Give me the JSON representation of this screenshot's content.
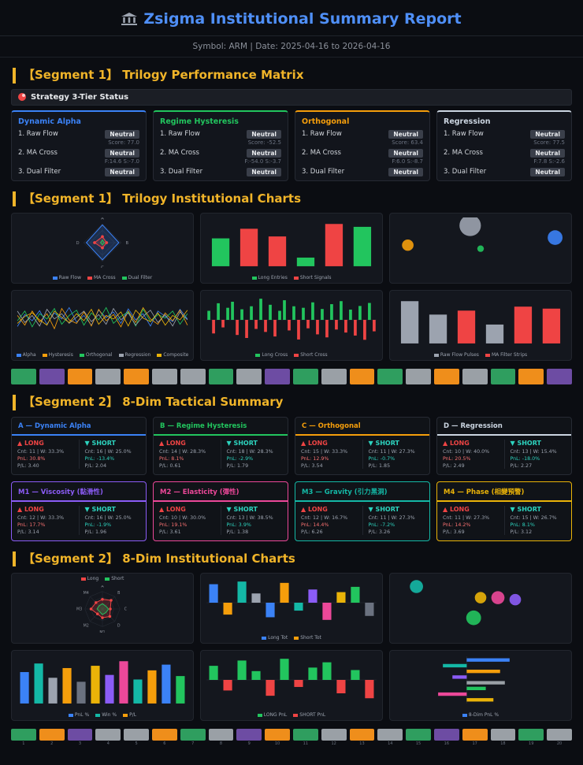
{
  "header": {
    "icon": "bank-icon",
    "title": "Zsigma Institutional Summary Report",
    "subtitle": "Symbol: ARM | Date: 2025-04-16 to 2026-04-16"
  },
  "segment1": {
    "heading_matrix": "【Segment 1】 Trilogy Performance Matrix",
    "status_label": "Strategy 3-Tier Status",
    "heading_charts": "【Segment 1】 Trilogy Institutional Charts",
    "strategies": [
      {
        "name": "Dynamic Alpha",
        "color": "#3b82f6",
        "tiers": [
          {
            "label": "1. Raw Flow",
            "badge": "Neutral",
            "detail": "Score: 77.0"
          },
          {
            "label": "2. MA Cross",
            "badge": "Neutral",
            "detail": "F:14.6 S:-7.0"
          },
          {
            "label": "3. Dual Filter",
            "badge": "Neutral",
            "detail": ""
          }
        ]
      },
      {
        "name": "Regime Hysteresis",
        "color": "#22c55e",
        "tiers": [
          {
            "label": "1. Raw Flow",
            "badge": "Neutral",
            "detail": "Score: -52.5"
          },
          {
            "label": "2. MA Cross",
            "badge": "Neutral",
            "detail": "F:-54.0 S:-3.7"
          },
          {
            "label": "3. Dual Filter",
            "badge": "Neutral",
            "detail": ""
          }
        ]
      },
      {
        "name": "Orthogonal",
        "color": "#f59e0b",
        "tiers": [
          {
            "label": "1. Raw Flow",
            "badge": "Neutral",
            "detail": "Score: 63.4"
          },
          {
            "label": "2. MA Cross",
            "badge": "Neutral",
            "detail": "F:6.0 S:-8.7"
          },
          {
            "label": "3. Dual Filter",
            "badge": "Neutral",
            "detail": ""
          }
        ]
      },
      {
        "name": "Regression",
        "color": "#cbd5e1",
        "tiers": [
          {
            "label": "1. Raw Flow",
            "badge": "Neutral",
            "detail": "Score: 77.5"
          },
          {
            "label": "2. MA Cross",
            "badge": "Neutral",
            "detail": "F:7.8 S:-2.6"
          },
          {
            "label": "3. Dual Filter",
            "badge": "Neutral",
            "detail": ""
          }
        ]
      }
    ]
  },
  "segment2": {
    "heading_summary": "【Segment 2】 8-Dim Tactical Summary",
    "heading_charts": "【Segment 2】 8-Dim Institutional Charts",
    "cards": [
      {
        "title": "A — Dynamic Alpha",
        "color": "#3b82f6",
        "long": {
          "dir": "▲ LONG",
          "cnt": "Cnt: 11 | W: 33.3%",
          "pnl": "PnL: 30.8%",
          "pl": "P/L: 3.40"
        },
        "short": {
          "dir": "▼ SHORT",
          "cnt": "Cnt: 16 | W: 25.0%",
          "pnl": "PnL: -13.4%",
          "pl": "P/L: 2.04"
        }
      },
      {
        "title": "B — Regime Hysteresis",
        "color": "#22c55e",
        "long": {
          "dir": "▲ LONG",
          "cnt": "Cnt: 14 | W: 28.3%",
          "pnl": "PnL: 8.1%",
          "pl": "P/L: 0.61"
        },
        "short": {
          "dir": "▼ SHORT",
          "cnt": "Cnt: 18 | W: 28.3%",
          "pnl": "PnL: -2.9%",
          "pl": "P/L: 1.79"
        }
      },
      {
        "title": "C — Orthogonal",
        "color": "#f59e0b",
        "long": {
          "dir": "▲ LONG",
          "cnt": "Cnt: 15 | W: 33.3%",
          "pnl": "PnL: 12.9%",
          "pl": "P/L: 3.54"
        },
        "short": {
          "dir": "▼ SHORT",
          "cnt": "Cnt: 11 | W: 27.3%",
          "pnl": "PnL: -0.7%",
          "pl": "P/L: 1.85"
        }
      },
      {
        "title": "D — Regression",
        "color": "#cbd5e1",
        "long": {
          "dir": "▲ LONG",
          "cnt": "Cnt: 10 | W: 40.0%",
          "pnl": "PnL: 20.5%",
          "pl": "P/L: 2.49"
        },
        "short": {
          "dir": "▼ SHORT",
          "cnt": "Cnt: 13 | W: 15.4%",
          "pnl": "PnL: -18.0%",
          "pl": "P/L: 2.27"
        }
      },
      {
        "title": "M1 — Viscosity (黏滑性)",
        "color": "#8b5cf6",
        "long": {
          "dir": "▲ LONG",
          "cnt": "Cnt: 12 | W: 33.3%",
          "pnl": "PnL: 17.7%",
          "pl": "P/L: 3.14"
        },
        "short": {
          "dir": "▼ SHORT",
          "cnt": "Cnt: 16 | W: 25.0%",
          "pnl": "PnL: -1.9%",
          "pl": "P/L: 1.96"
        }
      },
      {
        "title": "M2 — Elasticity (彈性)",
        "color": "#ec4899",
        "long": {
          "dir": "▲ LONG",
          "cnt": "Cnt: 10 | W: 30.0%",
          "pnl": "PnL: 19.1%",
          "pl": "P/L: 3.61"
        },
        "short": {
          "dir": "▼ SHORT",
          "cnt": "Cnt: 13 | W: 38.5%",
          "pnl": "PnL: 3.9%",
          "pl": "P/L: 1.38"
        }
      },
      {
        "title": "M3 — Gravity (引力黑洞)",
        "color": "#14b8a6",
        "long": {
          "dir": "▲ LONG",
          "cnt": "Cnt: 12 | W: 16.7%",
          "pnl": "PnL: 14.4%",
          "pl": "P/L: 6.26"
        },
        "short": {
          "dir": "▼ SHORT",
          "cnt": "Cnt: 11 | W: 27.3%",
          "pnl": "PnL: -7.2%",
          "pl": "P/L: 3.26"
        }
      },
      {
        "title": "M4 — Phase (相變預警)",
        "color": "#eab308",
        "long": {
          "dir": "▲ LONG",
          "cnt": "Cnt: 11 | W: 27.3%",
          "pnl": "PnL: 14.2%",
          "pl": "P/L: 3.69"
        },
        "short": {
          "dir": "▼ SHORT",
          "cnt": "Cnt: 15 | W: 26.7%",
          "pnl": "PnL: 8.1%",
          "pl": "P/L: 3.12"
        }
      }
    ]
  },
  "chart_data": [
    {
      "type": "radar",
      "axes": [
        "A",
        "B",
        "C",
        "D"
      ],
      "series": [
        {
          "name": "Raw Flow",
          "color": "#3b82f6",
          "values": [
            0.95,
            0.88,
            0.92,
            0.86
          ]
        },
        {
          "name": "MA Cross",
          "color": "#ef4444",
          "dots": true,
          "values": [
            0.32,
            0.22,
            0.28,
            0.42
          ]
        },
        {
          "name": "Dual Filter",
          "color": "#22c55e",
          "values": [
            0.14,
            0.1,
            0.12,
            0.1
          ]
        }
      ],
      "legend": [
        {
          "label": "Raw Flow",
          "color": "#3b82f6"
        },
        {
          "label": "MA Cross",
          "color": "#ef4444"
        },
        {
          "label": "Dual Filter",
          "color": "#22c55e"
        }
      ],
      "legend_pos": "bottom"
    },
    {
      "type": "bar",
      "values": [
        58,
        78,
        62,
        18,
        88,
        82
      ],
      "colors": [
        "#22c55e",
        "#ef4444",
        "#ef4444",
        "#22c55e",
        "#ef4444",
        "#22c55e"
      ],
      "legend": [
        {
          "label": "Long Entries",
          "color": "#22c55e"
        },
        {
          "label": "Short Signals",
          "color": "#ef4444"
        }
      ]
    },
    {
      "type": "scatter",
      "points": [
        {
          "x": 0.08,
          "y": 0.55,
          "r": 7,
          "color": "#f59e0b"
        },
        {
          "x": 0.44,
          "y": 0.16,
          "r": 13,
          "color": "#9ca3af"
        },
        {
          "x": 0.5,
          "y": 0.62,
          "r": 4,
          "color": "#22c55e"
        },
        {
          "x": 0.93,
          "y": 0.4,
          "r": 9,
          "color": "#3b82f6"
        }
      ]
    },
    {
      "type": "line",
      "series": [
        {
          "name": "Alpha",
          "color": "#3b82f6",
          "values": [
            35,
            62,
            48,
            71,
            40,
            66,
            52,
            78,
            45,
            60,
            38,
            72,
            55,
            68,
            42,
            75,
            50,
            64,
            36,
            70,
            58,
            46,
            74,
            52
          ]
        },
        {
          "name": "Hysteresis",
          "color": "#f59e0b",
          "values": [
            60,
            38,
            70,
            45,
            64,
            30,
            76,
            50,
            42,
            68,
            36,
            74,
            48,
            62,
            34,
            70,
            44,
            78,
            52,
            40,
            66,
            48,
            72,
            38
          ]
        },
        {
          "name": "Orthogonal",
          "color": "#22c55e",
          "values": [
            48,
            70,
            34,
            64,
            52,
            76,
            40,
            60,
            72,
            38,
            66,
            50,
            78,
            42,
            58,
            68,
            36,
            74,
            46,
            62,
            54,
            70,
            40,
            64
          ]
        },
        {
          "name": "Regression",
          "color": "#9ca3af",
          "values": [
            70,
            44,
            60,
            36,
            74,
            52,
            64,
            42,
            56,
            70,
            46,
            62,
            40,
            76,
            50,
            66,
            38,
            58,
            72,
            44,
            62,
            36,
            68,
            50
          ]
        },
        {
          "name": "Composite",
          "color": "#eab308",
          "values": [
            42,
            58,
            66,
            50,
            38,
            70,
            56,
            44,
            64,
            48,
            74,
            40,
            60,
            52,
            68,
            36,
            72,
            54,
            46,
            66,
            38,
            60,
            50,
            72
          ]
        }
      ],
      "legend": [
        {
          "label": "Alpha",
          "color": "#3b82f6"
        },
        {
          "label": "Hysteresis",
          "color": "#f59e0b"
        },
        {
          "label": "Orthogonal",
          "color": "#22c55e"
        },
        {
          "label": "Regression",
          "color": "#9ca3af"
        },
        {
          "label": "Composite",
          "color": "#eab308"
        }
      ]
    },
    {
      "type": "bar",
      "values": [
        30,
        -45,
        55,
        -25,
        40,
        60,
        -50,
        35,
        -60,
        45,
        -30,
        70,
        -40,
        50,
        -55,
        30,
        65,
        -35,
        45,
        -65,
        40,
        -28,
        58,
        -48,
        36,
        -58,
        52,
        -32,
        62,
        -42,
        34,
        -52,
        46,
        -66,
        56,
        -38
      ],
      "pos_color": "#22c55e",
      "neg_color": "#ef4444",
      "legend": [
        {
          "label": "Long Cross",
          "color": "#22c55e"
        },
        {
          "label": "Short Cross",
          "color": "#ef4444"
        }
      ]
    },
    {
      "type": "bar",
      "values": [
        85,
        58,
        66,
        38,
        74,
        70
      ],
      "colors": [
        "#9ca3af",
        "#9ca3af",
        "#ef4444",
        "#9ca3af",
        "#ef4444",
        "#ef4444"
      ],
      "legend": [
        {
          "label": "Raw Flow Pulses",
          "color": "#9ca3af"
        },
        {
          "label": "MA Filter Strips",
          "color": "#ef4444"
        }
      ]
    },
    {
      "type": "heatmap",
      "colors": [
        "#2f9e5f",
        "#6d4ca3",
        "#ef8e1b",
        "#9aa0a6",
        "#ef8e1b",
        "#9aa0a6",
        "#9aa0a6",
        "#2f9e5f",
        "#9aa0a6",
        "#6d4ca3",
        "#2f9e5f",
        "#9aa0a6",
        "#ef8e1b",
        "#2f9e5f",
        "#9aa0a6",
        "#ef8e1b",
        "#9aa0a6",
        "#2f9e5f",
        "#ef8e1b",
        "#6d4ca3"
      ]
    },
    {
      "type": "radar",
      "axes": [
        "A",
        "B",
        "C",
        "D",
        "M1",
        "M2",
        "M3",
        "M4"
      ],
      "series": [
        {
          "name": "Long",
          "color": "#ef4444",
          "dots": true,
          "values": [
            0.55,
            0.7,
            0.45,
            0.6,
            0.5,
            0.4,
            0.65,
            0.52
          ]
        },
        {
          "name": "Short",
          "color": "#22c55e",
          "values": [
            0.3,
            0.25,
            0.35,
            0.28,
            0.32,
            0.22,
            0.3,
            0.26
          ]
        }
      ],
      "legend": [
        {
          "label": "Long",
          "color": "#ef4444"
        },
        {
          "label": "Short",
          "color": "#22c55e"
        }
      ],
      "legend_pos": "top"
    },
    {
      "type": "bar",
      "values": [
        14,
        -9,
        16,
        7,
        -11,
        15,
        -6,
        10,
        -13,
        8,
        12,
        -10
      ],
      "colors": [
        "#3b82f6",
        "#f59e0b",
        "#14b8a6",
        "#9ca3af",
        "#3b82f6",
        "#f59e0b",
        "#14b8a6",
        "#8b5cf6",
        "#ec4899",
        "#eab308",
        "#22c55e",
        "#6b7280"
      ],
      "legend": [
        {
          "label": "Long Tot",
          "color": "#3b82f6"
        },
        {
          "label": "Short Tot",
          "color": "#f59e0b"
        }
      ]
    },
    {
      "type": "scatter",
      "points": [
        {
          "x": 0.13,
          "y": 0.18,
          "r": 8,
          "color": "#14b8a6"
        },
        {
          "x": 0.5,
          "y": 0.4,
          "r": 7,
          "color": "#eab308"
        },
        {
          "x": 0.6,
          "y": 0.4,
          "r": 8,
          "color": "#ec4899"
        },
        {
          "x": 0.7,
          "y": 0.44,
          "r": 7,
          "color": "#8b5cf6"
        },
        {
          "x": 0.46,
          "y": 0.8,
          "r": 9,
          "color": "#22c55e"
        }
      ]
    },
    {
      "type": "bar",
      "values": [
        55,
        70,
        45,
        62,
        38,
        66,
        50,
        74,
        42,
        58,
        68,
        48
      ],
      "colors": [
        "#3b82f6",
        "#14b8a6",
        "#9ca3af",
        "#f59e0b",
        "#6b7280",
        "#eab308",
        "#8b5cf6",
        "#ec4899",
        "#14b8a6",
        "#f59e0b",
        "#3b82f6",
        "#22c55e"
      ],
      "legend": [
        {
          "label": "PnL %",
          "color": "#3b82f6"
        },
        {
          "label": "Win %",
          "color": "#14b8a6"
        },
        {
          "label": "P/L",
          "color": "#f59e0b"
        }
      ]
    },
    {
      "type": "bar",
      "values": [
        40,
        -30,
        55,
        25,
        -45,
        60,
        -20,
        35,
        50,
        -38,
        28,
        -52
      ],
      "pos_color": "#22c55e",
      "neg_color": "#ef4444",
      "legend": [
        {
          "label": "LONG PnL",
          "color": "#22c55e"
        },
        {
          "label": "SHORT PnL",
          "color": "#ef4444"
        }
      ]
    },
    {
      "type": "hbar",
      "values": [
        0.45,
        -0.25,
        0.35,
        -0.15,
        0.4,
        0.2,
        -0.3,
        0.28
      ],
      "colors": [
        "#3b82f6",
        "#14b8a6",
        "#f59e0b",
        "#8b5cf6",
        "#9aa0a6",
        "#22c55e",
        "#ec4899",
        "#eab308"
      ],
      "legend": [
        {
          "label": "8-Dim PnL %",
          "color": "#3b82f6"
        }
      ]
    },
    {
      "type": "heatmap",
      "colors": [
        "#2f9e5f",
        "#ef8e1b",
        "#6d4ca3",
        "#9aa0a6",
        "#9aa0a6",
        "#ef8e1b",
        "#2f9e5f",
        "#9aa0a6",
        "#6d4ca3",
        "#ef8e1b",
        "#2f9e5f",
        "#9aa0a6",
        "#ef8e1b",
        "#9aa0a6",
        "#2f9e5f",
        "#6d4ca3",
        "#ef8e1b",
        "#9aa0a6",
        "#2f9e5f",
        "#9aa0a6"
      ],
      "labels": [
        "1",
        "2",
        "3",
        "4",
        "5",
        "6",
        "7",
        "8",
        "9",
        "10",
        "11",
        "12",
        "13",
        "14",
        "15",
        "16",
        "17",
        "18",
        "19",
        "20"
      ]
    }
  ]
}
